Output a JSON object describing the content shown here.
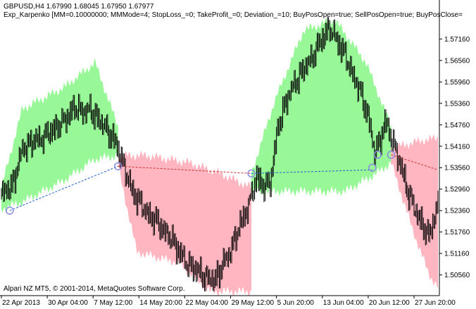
{
  "header": {
    "symbol_line": "GBPUSD,H4  1.67990 1.68045 1.67950 1.67977",
    "indicator_line": "Exp_Karpenko [MM=0.10000000; MMMode=4; StopLoss_=0; TakeProfit_=0; Deviation_=10; BuyPosOpen=true; SellPosOpen=true; BuyPosClose="
  },
  "footer": {
    "copyright": "Alpari NZ MT5, © 2001-2014, MetaQuotes Software Corp."
  },
  "colors": {
    "background": "#ffffff",
    "axis": "#000000",
    "candle": "#000000",
    "bull_cloud": "#98f898",
    "bear_cloud": "#ffb6c1",
    "buy_trade_line": "#1f5fd1",
    "sell_trade_line": "#c83232",
    "trade_marker": "#8a8ae0"
  },
  "chart_data": {
    "type": "candlestick",
    "symbol": "GBPUSD",
    "timeframe": "H4",
    "last_quote": {
      "open": 1.6799,
      "high": 1.68045,
      "low": 1.6795,
      "close": 1.67977
    },
    "y_ticks": [
      "1.57160",
      "1.56560",
      "1.55960",
      "1.55360",
      "1.54760",
      "1.54160",
      "1.53560",
      "1.52960",
      "1.52360",
      "1.51760",
      "1.51160",
      "1.50560"
    ],
    "y_tick_values": [
      1.5716,
      1.5656,
      1.5596,
      1.5536,
      1.5476,
      1.5416,
      1.5356,
      1.5296,
      1.5236,
      1.5176,
      1.5116,
      1.5056
    ],
    "ylim": [
      1.5,
      1.577
    ],
    "x_ticks": [
      "22 Apr 2013",
      "30 Apr 04:00",
      "7 May 12:00",
      "14 May 20:00",
      "22 May 04:00",
      "29 May 12:00",
      "5 Jun 20:00",
      "13 Jun 04:00",
      "20 Jun 12:00",
      "27 Jun 20:00"
    ],
    "x_tick_index": [
      0,
      44,
      88,
      132,
      176,
      220,
      264,
      308,
      352,
      396
    ],
    "bar_count": 420,
    "price_path": [
      [
        0,
        1.5285
      ],
      [
        10,
        1.53
      ],
      [
        20,
        1.541
      ],
      [
        50,
        1.546
      ],
      [
        70,
        1.552
      ],
      [
        85,
        1.5515
      ],
      [
        100,
        1.547
      ],
      [
        110,
        1.542
      ],
      [
        118,
        1.536
      ],
      [
        125,
        1.529
      ],
      [
        140,
        1.523
      ],
      [
        160,
        1.517
      ],
      [
        175,
        1.51
      ],
      [
        190,
        1.506
      ],
      [
        205,
        1.504
      ],
      [
        222,
        1.514
      ],
      [
        238,
        1.526
      ],
      [
        245,
        1.533
      ],
      [
        252,
        1.53
      ],
      [
        258,
        1.532
      ],
      [
        265,
        1.546
      ],
      [
        275,
        1.556
      ],
      [
        290,
        1.563
      ],
      [
        305,
        1.57
      ],
      [
        315,
        1.575
      ],
      [
        328,
        1.568
      ],
      [
        340,
        1.56
      ],
      [
        352,
        1.55
      ],
      [
        358,
        1.54
      ],
      [
        362,
        1.542
      ],
      [
        368,
        1.548
      ],
      [
        375,
        1.544
      ],
      [
        382,
        1.537
      ],
      [
        390,
        1.529
      ],
      [
        400,
        1.522
      ],
      [
        410,
        1.516
      ],
      [
        419,
        1.526
      ]
    ],
    "clouds": [
      {
        "kind": "bull",
        "start": 0,
        "end": 112,
        "top": [
          [
            0,
            1.53
          ],
          [
            20,
            1.552
          ],
          [
            60,
            1.558
          ],
          [
            90,
            1.565
          ],
          [
            112,
            1.547
          ]
        ],
        "bottom": [
          [
            0,
            1.524
          ],
          [
            20,
            1.526
          ],
          [
            60,
            1.532
          ],
          [
            90,
            1.538
          ],
          [
            112,
            1.539
          ]
        ]
      },
      {
        "kind": "bear",
        "start": 112,
        "end": 240,
        "top": [
          [
            112,
            1.539
          ],
          [
            140,
            1.539
          ],
          [
            180,
            1.537
          ],
          [
            210,
            1.534
          ],
          [
            240,
            1.53
          ]
        ],
        "bottom": [
          [
            112,
            1.536
          ],
          [
            130,
            1.512
          ],
          [
            170,
            1.509
          ],
          [
            200,
            1.501
          ],
          [
            240,
            1.501
          ]
        ]
      },
      {
        "kind": "bull",
        "start": 240,
        "end": 374,
        "top": [
          [
            240,
            1.534
          ],
          [
            262,
            1.554
          ],
          [
            290,
            1.574
          ],
          [
            320,
            1.577
          ],
          [
            350,
            1.565
          ],
          [
            374,
            1.547
          ]
        ],
        "bottom": [
          [
            240,
            1.529
          ],
          [
            280,
            1.529
          ],
          [
            330,
            1.529
          ],
          [
            360,
            1.534
          ],
          [
            374,
            1.537
          ]
        ]
      },
      {
        "kind": "bear",
        "start": 374,
        "end": 419,
        "top": [
          [
            374,
            1.541
          ],
          [
            400,
            1.543
          ],
          [
            419,
            1.544
          ]
        ],
        "bottom": [
          [
            374,
            1.537
          ],
          [
            395,
            1.518
          ],
          [
            410,
            1.506
          ],
          [
            419,
            1.502
          ]
        ]
      }
    ],
    "trades": [
      {
        "kind": "buy",
        "from": [
          8,
          1.5236
        ],
        "to": [
          112,
          1.536
        ]
      },
      {
        "kind": "sell",
        "from": [
          112,
          1.536
        ],
        "to": [
          240,
          1.534
        ]
      },
      {
        "kind": "buy",
        "from": [
          240,
          1.534
        ],
        "to": [
          356,
          1.535
        ]
      },
      {
        "kind": "sell",
        "from": [
          374,
          1.5392
        ],
        "to": [
          419,
          1.535
        ]
      }
    ],
    "markers": [
      {
        "index": 8,
        "price": 1.5236
      },
      {
        "index": 112,
        "price": 1.536
      },
      {
        "index": 240,
        "price": 1.534
      },
      {
        "index": 356,
        "price": 1.5356
      },
      {
        "index": 361,
        "price": 1.5392
      },
      {
        "index": 374,
        "price": 1.5392
      }
    ]
  }
}
